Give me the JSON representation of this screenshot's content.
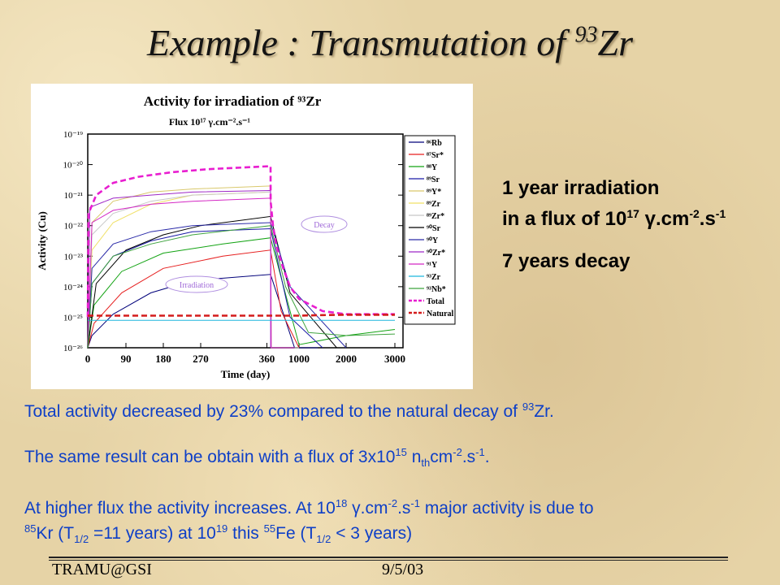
{
  "slide": {
    "title_prefix": "Example : Transmutation of ",
    "title_sup": "93",
    "title_suffix": "Zr",
    "side": {
      "line1": "1 year irradiation",
      "line2_prefix": "in a flux of 10",
      "line2_exp": "17",
      "line2_unit": " γ.cm",
      "line2_exp2": "-2",
      "line2_sep": ".s",
      "line2_exp3": "-1",
      "line3": "7 years decay"
    },
    "notes": {
      "n1_text": "Total activity decreased by 23% compared to the natural decay of ",
      "n1_sup": "93",
      "n1_tail": "Zr.",
      "n2_text": "The same result can be obtain with a flux of 3x10",
      "n2_sup1": "15",
      "n2_mid": " n",
      "n2_sub": "th",
      "n2_cm": "cm",
      "n2_sup2": "-2",
      "n2_s": ".s",
      "n2_sup3": "-1",
      "n2_end": ".",
      "n3_a": "At higher flux the activity increases. At 10",
      "n3_a_sup": "18",
      "n3_b": " γ.cm",
      "n3_b_sup": "-2",
      "n3_c": ".s",
      "n3_c_sup": "-1",
      "n3_d": " major activity is due to",
      "n3_e_sup": "85",
      "n3_e": "Kr (T",
      "n3_e_sub": "1/2",
      "n3_f": " =11 years) at 10",
      "n3_f_sup": "19",
      "n3_g": " this ",
      "n3_g_sup": "55",
      "n3_h": "Fe (T",
      "n3_h_sub": "1/2",
      "n3_i": " < 3 years)"
    },
    "footer_left": "TRAMU@GSI",
    "footer_right": "9/5/03"
  },
  "chart_data": {
    "type": "line",
    "title": "Activity for irradiation of ⁹³Zr",
    "subtitle": "Flux 10¹⁷ γ.cm⁻².s⁻¹",
    "xlabel": "Time (day)",
    "ylabel": "Activity (Cu)",
    "x_ticks": [
      "0",
      "90",
      "180",
      "270",
      "360",
      "1000",
      "2000",
      "3000"
    ],
    "y_ticks": [
      "10⁻¹⁹",
      "10⁻²⁰",
      "10⁻²¹",
      "10⁻²²",
      "10⁻²³",
      "10⁻²⁴",
      "10⁻²⁵",
      "10⁻²⁶"
    ],
    "ylim": [
      -26,
      -19
    ],
    "y_scale": "log",
    "legend_placement": "right",
    "annotations": [
      "Decay",
      "Irradiation"
    ],
    "series": [
      {
        "name": "⁸⁶Rb",
        "color": "#00007a",
        "x": [
          0,
          10,
          60,
          150,
          250,
          365,
          900,
          1400
        ],
        "log10_y": [
          -26,
          -25.6,
          -24.9,
          -24.2,
          -23.8,
          -23.6,
          -26,
          -26
        ]
      },
      {
        "name": "⁸⁷Sr*",
        "color": "#e61f1f",
        "x": [
          0,
          15,
          80,
          180,
          300,
          365,
          600,
          1000
        ],
        "log10_y": [
          -26,
          -25.2,
          -24.2,
          -23.4,
          -23,
          -22.8,
          -24.8,
          -26
        ]
      },
      {
        "name": "⁸⁸Y",
        "color": "#13a313",
        "x": [
          0,
          15,
          80,
          180,
          300,
          365,
          1000,
          2000,
          3000
        ],
        "log10_y": [
          -26,
          -24.6,
          -23.5,
          -22.9,
          -22.6,
          -22.4,
          -25.9,
          -25.6,
          -25.4
        ]
      },
      {
        "name": "⁸⁹Sr",
        "color": "#1a1aa6",
        "x": [
          0,
          10,
          60,
          150,
          250,
          365,
          800,
          1500
        ],
        "log10_y": [
          -26,
          -23.9,
          -23,
          -22.5,
          -22.2,
          -22.1,
          -25,
          -26
        ]
      },
      {
        "name": "⁸⁹Y*",
        "color": "#d9c86b",
        "x": [
          0,
          10,
          60,
          150,
          250,
          365,
          380,
          1000
        ],
        "log10_y": [
          -26,
          -21.9,
          -21.2,
          -20.9,
          -20.8,
          -20.7,
          -26,
          -26
        ]
      },
      {
        "name": "⁸⁹Zr",
        "color": "#f0e066",
        "x": [
          0,
          10,
          60,
          150,
          250,
          365,
          380,
          1000
        ],
        "log10_y": [
          -26,
          -22.8,
          -21.9,
          -21.3,
          -21,
          -20.9,
          -26,
          -26
        ]
      },
      {
        "name": "⁸⁹Zr*",
        "color": "#c8c8c8",
        "x": [
          0,
          10,
          60,
          150,
          250,
          365,
          380,
          1000
        ],
        "log10_y": [
          -26,
          -22.3,
          -21.6,
          -21.2,
          -21,
          -20.9,
          -26,
          -26
        ]
      },
      {
        "name": "⁹⁰Sr",
        "color": "#000000",
        "x": [
          0,
          20,
          90,
          180,
          270,
          365,
          800,
          1800,
          2700
        ],
        "log10_y": [
          -26,
          -23.9,
          -22.8,
          -22.3,
          -22,
          -21.7,
          -24.2,
          -26,
          -26
        ]
      },
      {
        "name": "⁹⁰Y",
        "color": "#2a2aa8",
        "x": [
          0,
          10,
          60,
          150,
          250,
          365,
          800,
          2000
        ],
        "log10_y": [
          -26,
          -23.4,
          -22.6,
          -22.2,
          -22,
          -21.9,
          -24,
          -26
        ]
      },
      {
        "name": "⁹⁰Zr*",
        "color": "#9e28c6",
        "x": [
          0,
          5,
          60,
          150,
          250,
          365,
          366
        ],
        "log10_y": [
          -26,
          -21.4,
          -21.1,
          -21,
          -20.9,
          -20.85,
          -26
        ]
      },
      {
        "name": "⁹¹Y",
        "color": "#d428c4",
        "x": [
          0,
          10,
          60,
          150,
          250,
          365,
          380,
          900
        ],
        "log10_y": [
          -26,
          -21.9,
          -21.5,
          -21.3,
          -21.2,
          -21.1,
          -26,
          -26
        ]
      },
      {
        "name": "⁹³Zr",
        "color": "#1fb6de",
        "x": [
          0,
          5,
          3000
        ],
        "log10_y": [
          -25.1,
          -25.1,
          -25.1
        ]
      },
      {
        "name": "⁹³Nb*",
        "color": "#3fa33f",
        "x": [
          0,
          10,
          60,
          150,
          250,
          365,
          700,
          1200,
          2000,
          3000
        ],
        "log10_y": [
          -26,
          -23.9,
          -23,
          -22.6,
          -22.3,
          -22,
          -24,
          -25.5,
          -25.6,
          -25.55
        ]
      },
      {
        "name": "Total",
        "color": "#e81ed0",
        "dashed": true,
        "x": [
          0,
          2,
          20,
          60,
          120,
          200,
          280,
          365,
          366,
          420,
          500,
          650,
          800,
          1000,
          1500,
          2000,
          3000
        ],
        "log10_y": [
          -25,
          -21.6,
          -21,
          -20.6,
          -20.4,
          -20.25,
          -20.15,
          -20.05,
          -21.2,
          -22,
          -22.7,
          -23.4,
          -24,
          -24.4,
          -24.8,
          -24.9,
          -24.9
        ]
      },
      {
        "name": "Natural",
        "color": "#d41c1c",
        "dashed": true,
        "x": [
          0,
          365,
          1000,
          1500,
          2000,
          3000
        ],
        "log10_y": [
          -24.95,
          -24.95,
          -24.95,
          -24.93,
          -24.92,
          -24.92
        ]
      }
    ]
  }
}
